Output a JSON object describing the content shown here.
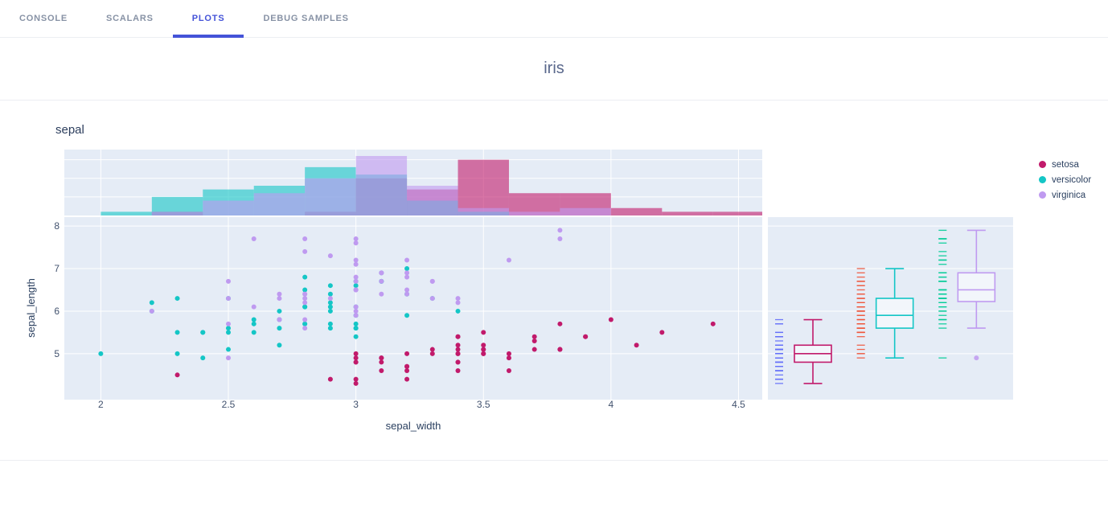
{
  "tabs": {
    "items": [
      {
        "label": "CONSOLE",
        "active": false
      },
      {
        "label": "SCALARS",
        "active": false
      },
      {
        "label": "PLOTS",
        "active": true
      },
      {
        "label": "DEBUG SAMPLES",
        "active": false
      }
    ]
  },
  "header": {
    "title": "iris"
  },
  "colors": {
    "accent": "#4453d8",
    "panel_bg": "#e5ecf6",
    "grid": "#ffffff",
    "tick_text": "#42526e",
    "axis_text": "#2a3f5f"
  },
  "chart_data": {
    "type": "scatter",
    "title": "sepal",
    "xlabel": "sepal_width",
    "ylabel": "sepal_length",
    "x_range": [
      1.857,
      4.593
    ],
    "y_range": [
      3.92,
      8.21
    ],
    "x_ticks": [
      2,
      2.5,
      3,
      3.5,
      4,
      4.5
    ],
    "y_ticks": [
      5,
      6,
      7,
      8
    ],
    "marginal_x": "histogram",
    "marginal_y": "box+rug",
    "hist_bin_start": 2.0,
    "hist_bin_width": 0.2,
    "legend_position": "right",
    "series": [
      {
        "name": "setosa",
        "color": "#c11a6b",
        "rug_color": "#636efa",
        "x": [
          3.5,
          3.0,
          3.2,
          3.1,
          3.6,
          3.9,
          3.4,
          3.4,
          2.9,
          3.1,
          3.7,
          3.4,
          3.0,
          3.0,
          4.0,
          4.4,
          3.9,
          3.5,
          3.8,
          3.8,
          3.4,
          3.7,
          3.6,
          3.3,
          3.4,
          3.0,
          3.4,
          3.5,
          3.4,
          3.2,
          3.1,
          3.4,
          4.1,
          4.2,
          3.1,
          3.2,
          3.5,
          3.6,
          3.0,
          3.4,
          3.5,
          2.3,
          3.2,
          3.5,
          3.8,
          3.0,
          3.8,
          3.2,
          3.7,
          3.3
        ],
        "y": [
          5.1,
          4.9,
          4.7,
          4.6,
          5.0,
          5.4,
          4.6,
          5.0,
          4.4,
          4.9,
          5.4,
          4.8,
          4.8,
          4.3,
          5.8,
          5.7,
          5.4,
          5.1,
          5.7,
          5.1,
          5.4,
          5.1,
          4.6,
          5.1,
          4.8,
          5.0,
          5.0,
          5.2,
          5.2,
          4.7,
          4.8,
          5.4,
          5.2,
          5.5,
          4.9,
          5.0,
          5.5,
          4.9,
          4.4,
          5.1,
          5.0,
          4.5,
          4.4,
          5.0,
          5.1,
          4.8,
          5.1,
          4.6,
          5.3,
          5.0
        ]
      },
      {
        "name": "versicolor",
        "color": "#14c6c6",
        "rug_color": "#ef553b",
        "x": [
          3.2,
          3.2,
          3.1,
          2.3,
          2.8,
          2.8,
          3.3,
          2.4,
          2.9,
          2.7,
          2.0,
          3.0,
          2.2,
          2.9,
          2.9,
          3.1,
          3.0,
          2.7,
          2.2,
          2.5,
          3.2,
          2.8,
          2.5,
          2.8,
          2.9,
          3.0,
          2.8,
          3.0,
          2.9,
          2.6,
          2.4,
          2.4,
          2.7,
          2.7,
          3.0,
          3.4,
          3.1,
          2.3,
          3.0,
          2.5,
          2.6,
          3.0,
          2.6,
          2.3,
          2.7,
          3.0,
          2.9,
          2.9,
          2.5,
          2.8
        ],
        "y": [
          7.0,
          6.4,
          6.9,
          5.5,
          6.5,
          5.7,
          6.3,
          4.9,
          6.6,
          5.2,
          5.0,
          5.9,
          6.0,
          6.1,
          5.6,
          6.7,
          5.6,
          5.8,
          6.2,
          5.6,
          5.9,
          6.1,
          6.3,
          6.1,
          6.4,
          6.6,
          6.8,
          6.7,
          6.0,
          5.7,
          5.5,
          5.5,
          5.8,
          6.0,
          5.4,
          6.0,
          6.7,
          6.3,
          5.6,
          5.5,
          5.5,
          6.1,
          5.8,
          5.0,
          5.6,
          5.7,
          5.7,
          6.2,
          5.1,
          5.7
        ]
      },
      {
        "name": "virginica",
        "color": "#bf9af0",
        "rug_color": "#00cc96",
        "x": [
          3.3,
          2.7,
          3.0,
          2.9,
          3.0,
          3.0,
          2.5,
          2.9,
          2.5,
          3.6,
          3.2,
          2.7,
          3.0,
          2.5,
          2.8,
          3.2,
          3.0,
          3.8,
          2.6,
          2.2,
          3.2,
          2.8,
          2.8,
          2.7,
          3.3,
          3.2,
          2.8,
          3.0,
          2.8,
          3.0,
          2.8,
          3.8,
          2.8,
          2.8,
          2.6,
          3.0,
          3.4,
          3.1,
          3.0,
          3.1,
          3.1,
          3.1,
          2.7,
          3.2,
          3.3,
          3.0,
          2.5,
          3.0,
          3.4,
          3.0
        ],
        "y": [
          6.3,
          5.8,
          7.1,
          6.3,
          6.5,
          7.6,
          4.9,
          7.3,
          6.7,
          7.2,
          6.5,
          6.4,
          6.8,
          5.7,
          5.8,
          6.4,
          6.5,
          7.7,
          7.7,
          6.0,
          6.9,
          5.6,
          7.7,
          6.3,
          6.7,
          7.2,
          6.2,
          6.1,
          6.4,
          7.2,
          7.4,
          7.9,
          6.4,
          6.3,
          6.1,
          7.7,
          6.3,
          6.4,
          6.0,
          6.9,
          6.7,
          6.9,
          5.8,
          6.8,
          6.7,
          6.7,
          6.3,
          6.5,
          6.2,
          5.9
        ]
      }
    ]
  }
}
